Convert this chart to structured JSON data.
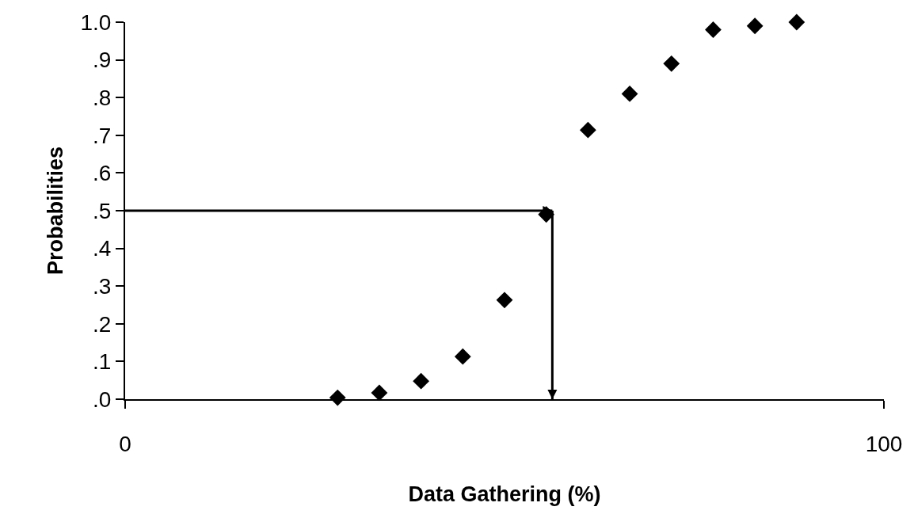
{
  "chart_data": {
    "type": "scatter",
    "xlabel": "Data Gathering (%)",
    "ylabel": "Probabilities",
    "x": [
      28,
      33.5,
      39,
      44.5,
      50,
      55.5,
      61,
      66.5,
      72,
      77.5,
      83,
      88.5
    ],
    "values": [
      0.004,
      0.017,
      0.048,
      0.113,
      0.263,
      0.49,
      0.714,
      0.81,
      0.89,
      0.98,
      0.99,
      1.0
    ],
    "color": "#000000",
    "marker": "diamond",
    "grid": false,
    "xlim": [
      0,
      100
    ],
    "xticks": [
      0,
      100
    ],
    "ylim": [
      0,
      1
    ],
    "yticks": [
      {
        "value": 0,
        "label": ".0"
      },
      {
        "value": 0.1,
        "label": ".1"
      },
      {
        "value": 0.2,
        "label": ".2"
      },
      {
        "value": 0.3,
        "label": ".3"
      },
      {
        "value": 0.4,
        "label": ".4"
      },
      {
        "value": 0.5,
        "label": ".5"
      },
      {
        "value": 0.6,
        "label": ".6"
      },
      {
        "value": 0.7,
        "label": ".7"
      },
      {
        "value": 0.8,
        "label": ".8"
      },
      {
        "value": 0.9,
        "label": ".9"
      },
      {
        "value": 1,
        "label": "1.0"
      }
    ],
    "ref_lines": [
      {
        "axis": "y",
        "value": 0.5,
        "line_style": "solid",
        "color": "#000000"
      },
      {
        "axis": "x",
        "value": 56.3,
        "line_style": "solid",
        "color": "#000000"
      }
    ]
  }
}
